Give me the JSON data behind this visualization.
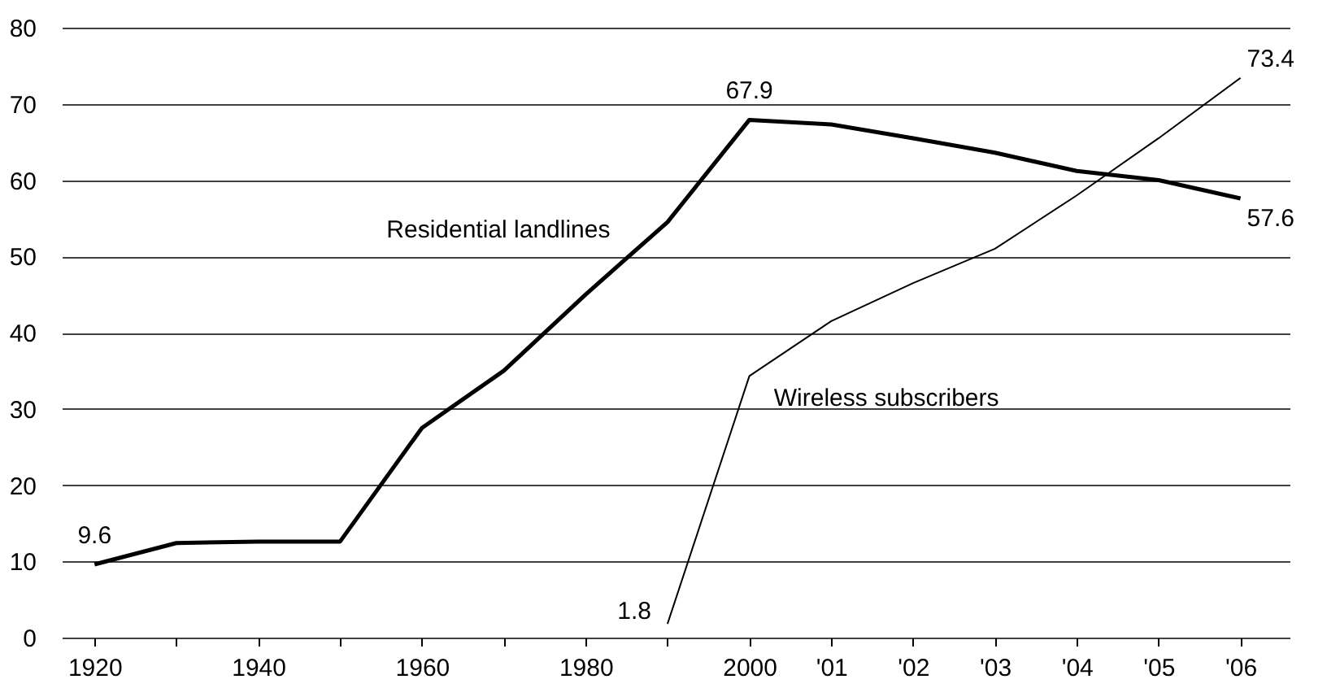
{
  "chart_data": {
    "type": "line",
    "categories": [
      "1920",
      null,
      "1940",
      null,
      "1960",
      null,
      "1980",
      null,
      "2000",
      "'01",
      "'02",
      "'03",
      "'04",
      "'05",
      "'06"
    ],
    "ylim": [
      0,
      80
    ],
    "yticks": [
      0,
      10,
      20,
      30,
      40,
      50,
      60,
      70,
      80
    ],
    "grid": "y",
    "marker": "none",
    "line_style": "solid",
    "series": [
      {
        "name": "Residential landlines",
        "color": "#000000",
        "values": [
          9.6,
          12.4,
          12.6,
          12.6,
          27.5,
          35,
          45,
          54.5,
          67.9,
          67.3,
          65.5,
          63.6,
          61.2,
          60,
          57.6
        ],
        "value_labels": [
          "9.6",
          null,
          null,
          null,
          null,
          null,
          null,
          null,
          "67.9",
          null,
          null,
          null,
          null,
          null,
          "57.6"
        ]
      },
      {
        "name": "Wireless subscribers",
        "color": "#000000",
        "values": [
          null,
          null,
          null,
          null,
          null,
          null,
          null,
          1.8,
          34.3,
          41.5,
          46.5,
          51,
          58,
          65.5,
          73.4
        ],
        "value_labels": [
          null,
          null,
          null,
          null,
          null,
          null,
          null,
          "1.8",
          null,
          null,
          null,
          null,
          null,
          null,
          "73.4"
        ]
      }
    ]
  }
}
